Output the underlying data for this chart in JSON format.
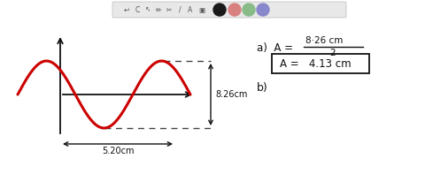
{
  "bg_color": "#ffffff",
  "wave_color": "#cc0000",
  "axis_color": "#111111",
  "dashed_color": "#444444",
  "annotation_color": "#111111",
  "toolbar_circles": [
    "#1a1a1a",
    "#d98080",
    "#88bb88",
    "#8888cc"
  ],
  "label_826": "8.26cm",
  "label_520": "5.20cm",
  "label_a": "a)  A =",
  "label_num": "8·26 cm",
  "label_denom": "2",
  "label_box": "A =   4.13 cm",
  "label_b": "b)"
}
